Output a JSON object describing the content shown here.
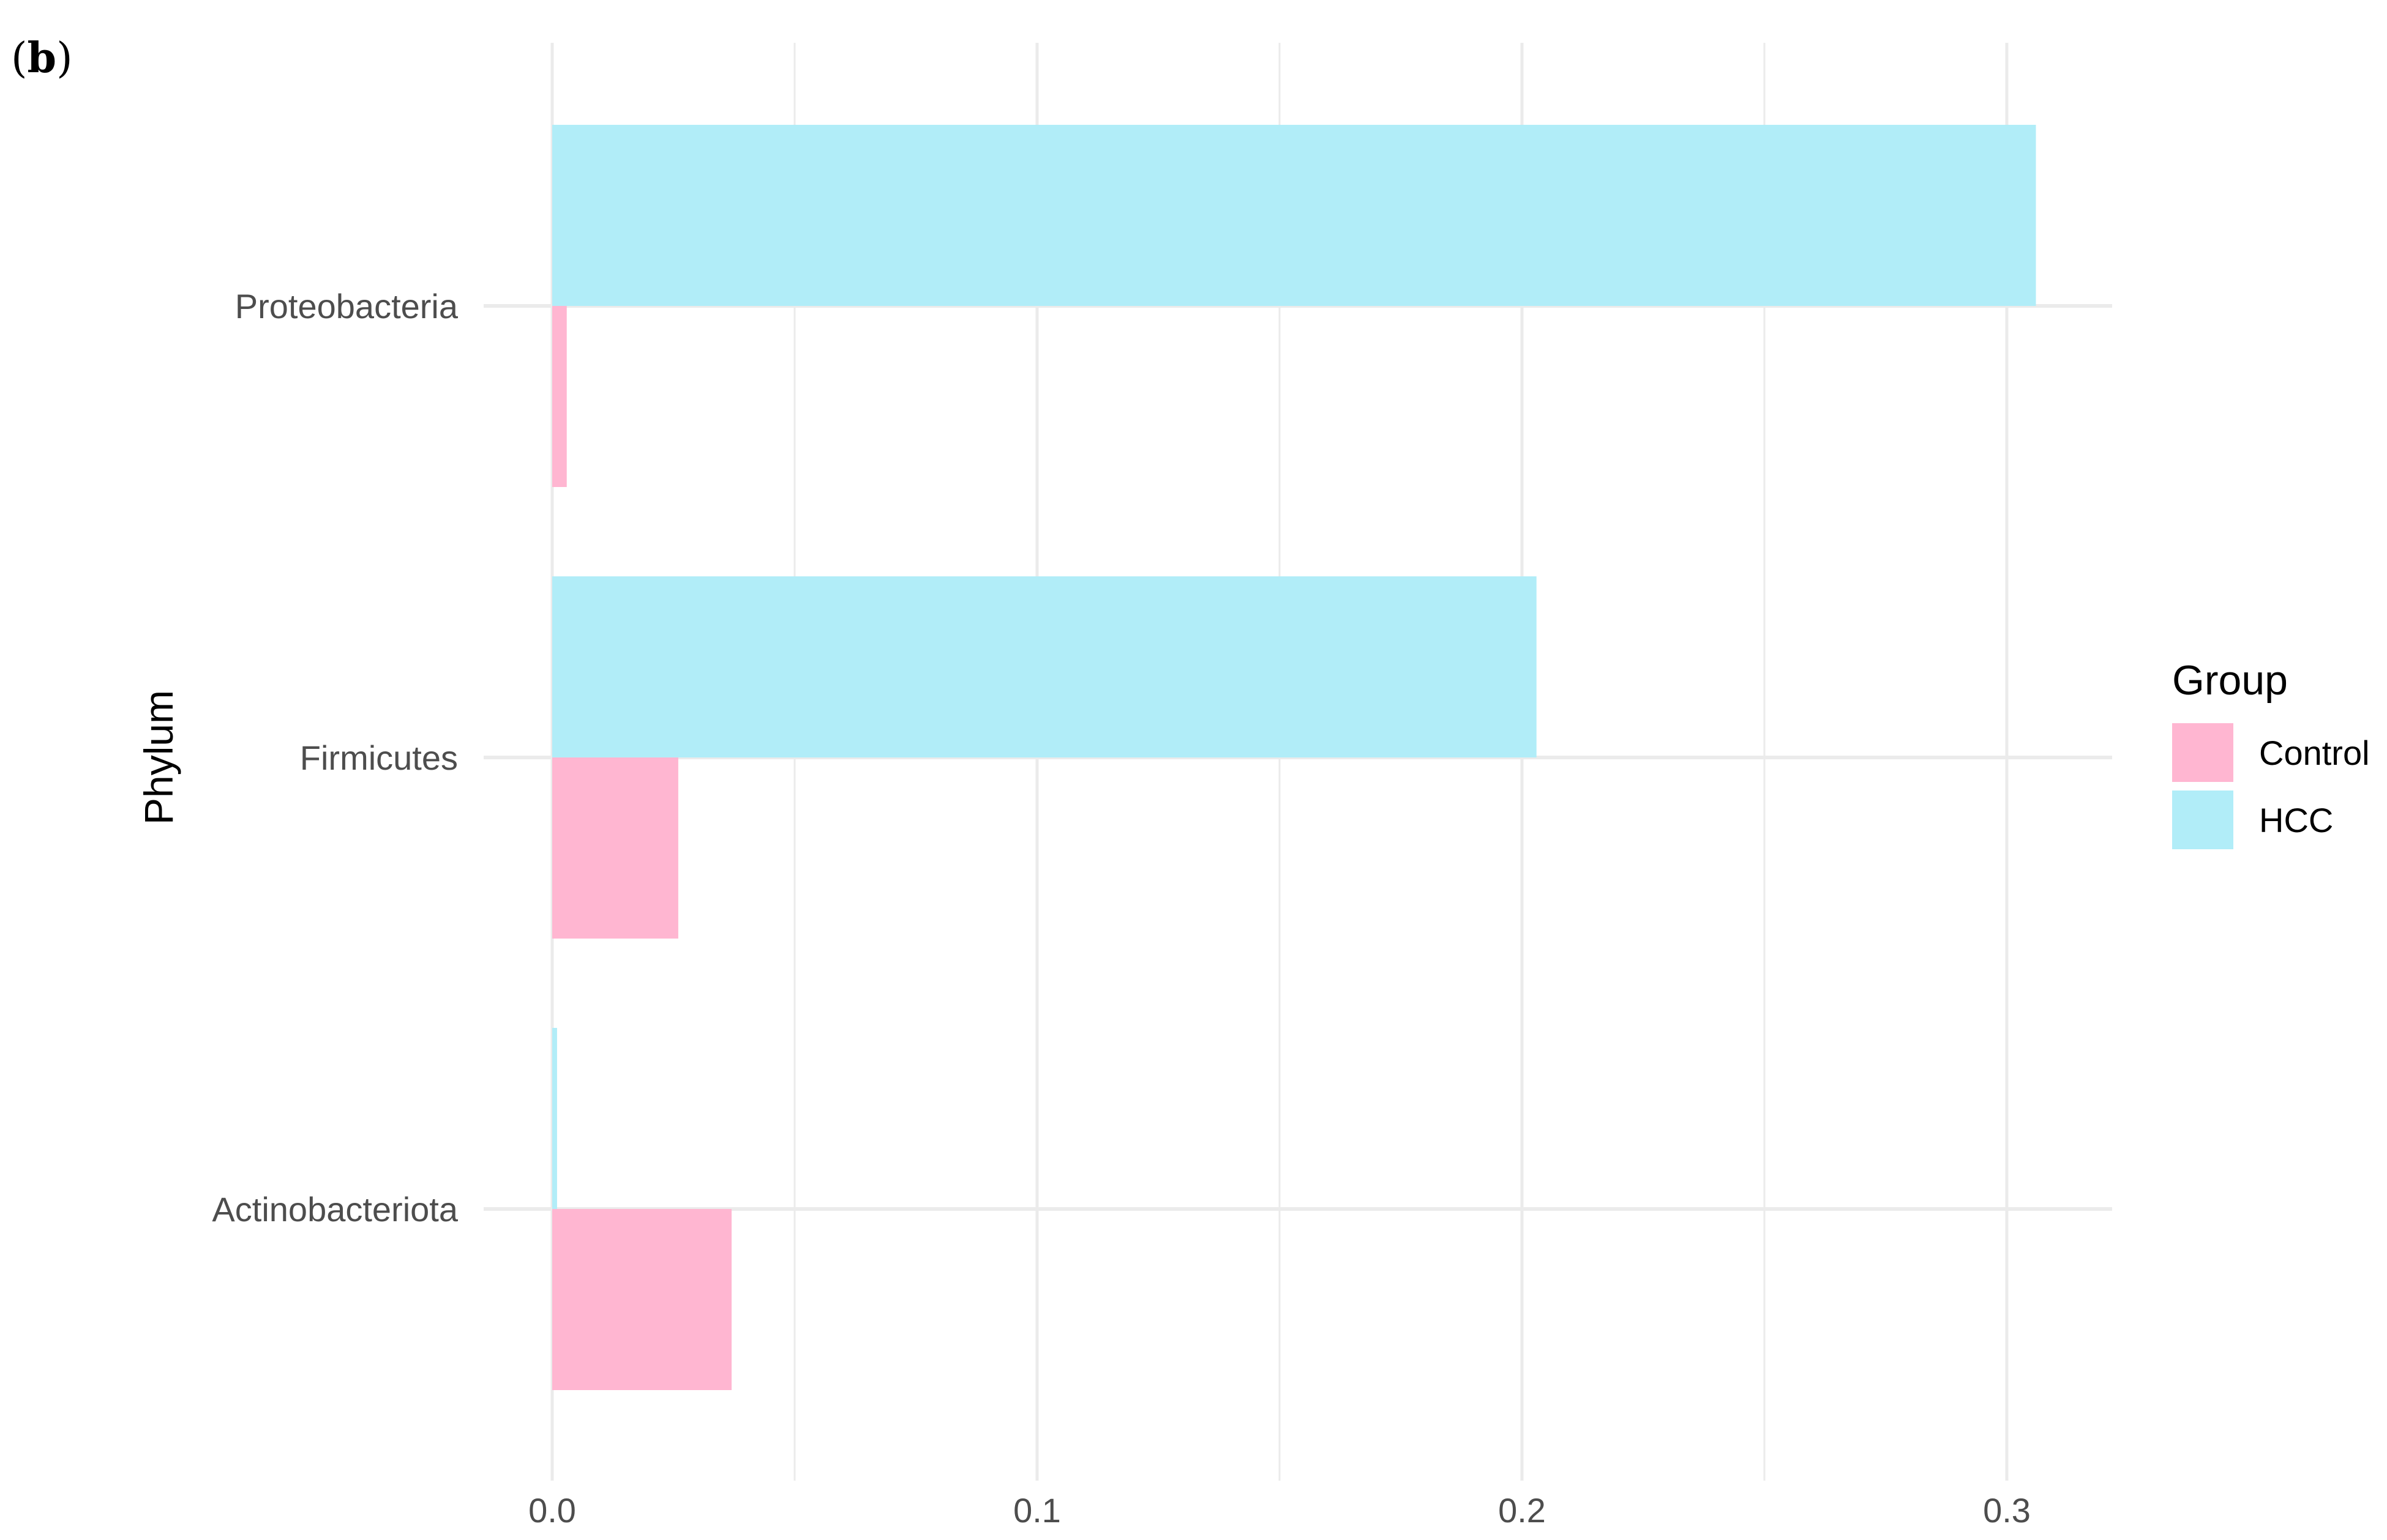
{
  "panel_label": "(b)",
  "colors": {
    "Control": "#ffb6d1",
    "HCC": "#b1edf8",
    "grid": "#ebebeb",
    "text": "#4d4d4d",
    "title_text": "#000000"
  },
  "chart_data": {
    "type": "bar",
    "orientation": "horizontal",
    "categories": [
      "Proteobacteria",
      "Firmicutes",
      "Actinobacteriota"
    ],
    "series": [
      {
        "name": "HCC",
        "values": [
          0.306,
          0.203,
          0.001
        ]
      },
      {
        "name": "Control",
        "values": [
          0.003,
          0.026,
          0.037
        ]
      }
    ],
    "ylabel": "Phylum",
    "xlabel": "",
    "xlim": [
      -0.06,
      0.32
    ],
    "xticks": [
      0.0,
      0.1,
      0.2,
      0.3
    ],
    "xtick_labels": [
      "0.0",
      "0.1",
      "0.2",
      "0.3"
    ],
    "grid": true,
    "legend": {
      "title": "Group",
      "position": "right",
      "items": [
        "Control",
        "HCC"
      ]
    }
  }
}
